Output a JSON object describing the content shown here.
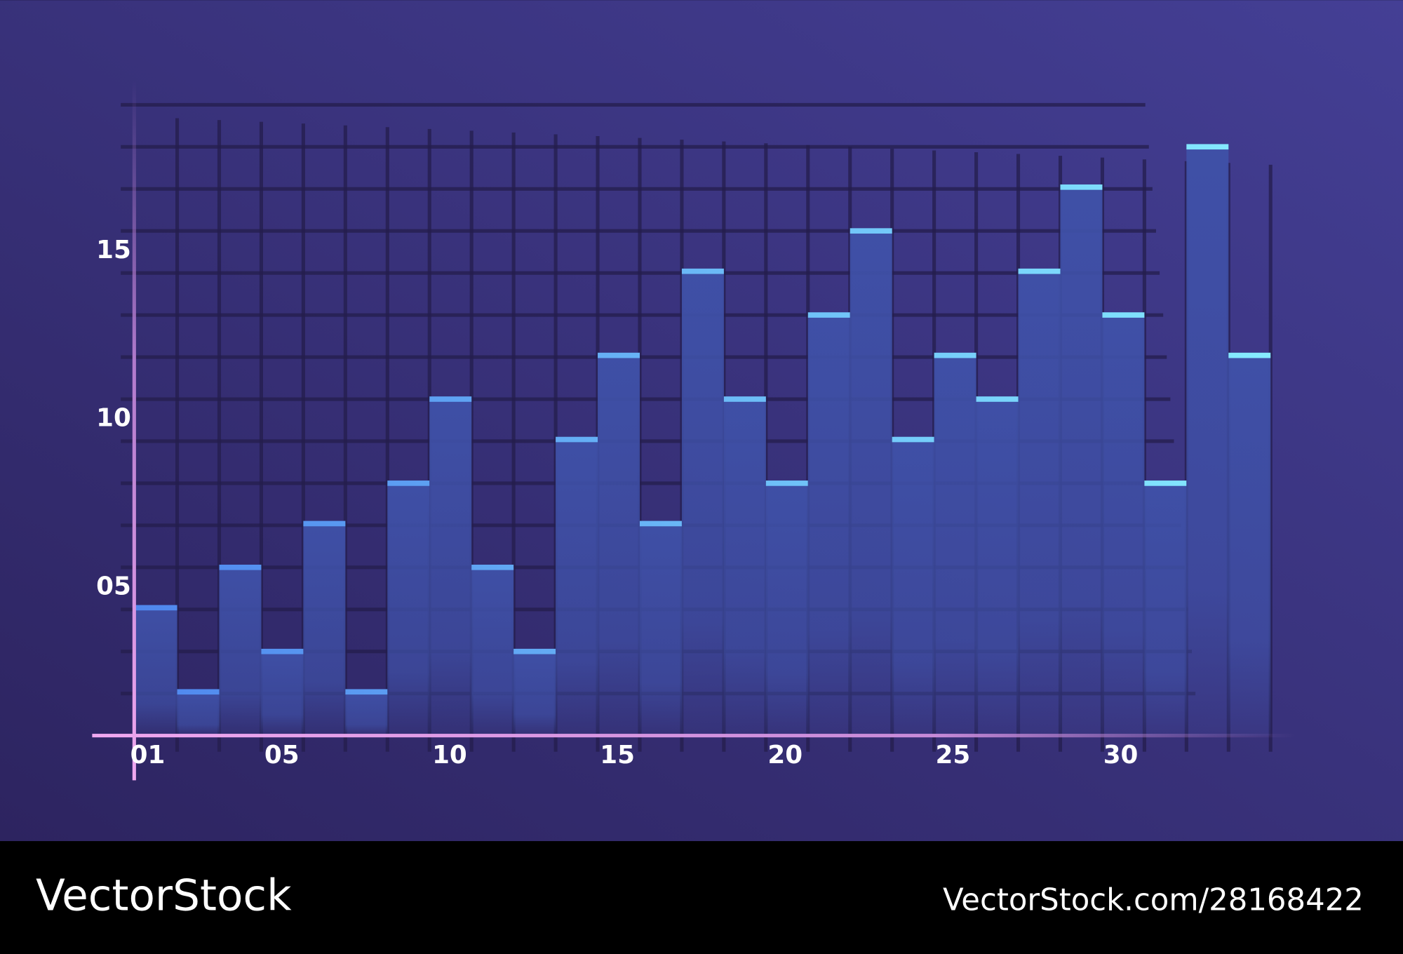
{
  "chart_data": {
    "type": "bar",
    "values": [
      4.4,
      1.9,
      5.6,
      3.1,
      6.9,
      1.9,
      8.1,
      10.6,
      5.6,
      3.1,
      9.4,
      11.9,
      6.9,
      14.4,
      10.6,
      8.1,
      13.1,
      15.6,
      9.4,
      11.9,
      10.6,
      14.4,
      16.9,
      13.1,
      8.1,
      18.1,
      11.9
    ],
    "color": "#3f51a8",
    "ylim": [
      0.6,
      19.8
    ],
    "yticks": [
      {
        "value": 5,
        "label": "05"
      },
      {
        "value": 10,
        "label": "10"
      },
      {
        "value": 15,
        "label": "15"
      }
    ],
    "xlim": [
      0,
      35
    ],
    "xticks": [
      {
        "value": 1,
        "label": "01"
      },
      {
        "value": 5,
        "label": "05"
      },
      10,
      15,
      20,
      25,
      30
    ],
    "grid": true
  },
  "watermark": {
    "brand": "VectorStock",
    "url": "VectorStock.com/28168422"
  }
}
